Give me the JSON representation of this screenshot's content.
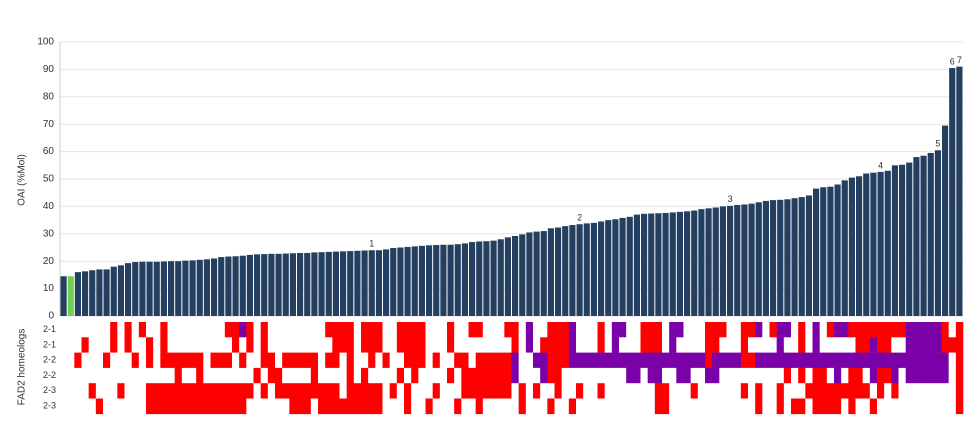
{
  "chart_data": {
    "type": "bar",
    "ylabel": "OAI (%Mol)",
    "ylim": [
      0,
      100
    ],
    "yticks": [
      0,
      10,
      20,
      30,
      40,
      50,
      60,
      70,
      80,
      90,
      100
    ],
    "grid": true,
    "color": "#243f60",
    "highlight": {
      "index": 1,
      "color": "#70d050"
    },
    "values": [
      14.5,
      14.5,
      16,
      16.3,
      16.7,
      17,
      17,
      18,
      18.5,
      19.3,
      19.7,
      19.8,
      19.8,
      19.8,
      19.9,
      20,
      20,
      20.2,
      20.3,
      20.5,
      20.7,
      21,
      21.5,
      21.7,
      21.8,
      22,
      22.3,
      22.5,
      22.6,
      22.7,
      22.7,
      22.8,
      22.9,
      23,
      23,
      23.2,
      23.3,
      23.4,
      23.5,
      23.6,
      23.7,
      23.8,
      23.9,
      24,
      24,
      24.3,
      24.8,
      25,
      25.2,
      25.4,
      25.6,
      25.8,
      25.9,
      26,
      26,
      26.2,
      26.5,
      27,
      27.2,
      27.3,
      27.5,
      28,
      28.7,
      29.2,
      29.8,
      30.5,
      30.8,
      31,
      32,
      32.3,
      32.8,
      33.2,
      33.5,
      33.8,
      34,
      34.5,
      35,
      35.3,
      35.8,
      36.2,
      37,
      37.3,
      37.4,
      37.5,
      37.6,
      37.8,
      38,
      38.2,
      38.5,
      39,
      39.3,
      39.6,
      40,
      40.2,
      40.5,
      40.7,
      41,
      41.5,
      42,
      42.3,
      42.4,
      42.6,
      43,
      43.4,
      44,
      46.5,
      47,
      47.2,
      48,
      49.5,
      50.5,
      51,
      52,
      52.3,
      52.6,
      53,
      55,
      55.2,
      56,
      58,
      58.5,
      59.5,
      60.5,
      69.5,
      90.5,
      91
    ],
    "annotations": [
      {
        "text": "1",
        "x": 43
      },
      {
        "text": "2",
        "x": 72
      },
      {
        "text": "3",
        "x": 93
      },
      {
        "text": "4",
        "x": 114
      },
      {
        "text": "5",
        "x": 122
      },
      {
        "text": "6",
        "x": 124
      },
      {
        "text": "7",
        "x": 125
      }
    ],
    "heatmap": {
      "label": "FAD2 homeologs",
      "colors": [
        "#ffffff",
        "#ff0000",
        "#7a00a8"
      ],
      "rows": [
        {
          "name": "2-1",
          "values": [
            0,
            0,
            0,
            0,
            0,
            0,
            0,
            1,
            0,
            1,
            0,
            1,
            0,
            0,
            1,
            0,
            0,
            0,
            0,
            0,
            0,
            0,
            0,
            1,
            1,
            2,
            1,
            0,
            1,
            0,
            0,
            0,
            0,
            0,
            0,
            0,
            0,
            1,
            1,
            1,
            1,
            0,
            1,
            1,
            1,
            0,
            0,
            1,
            1,
            1,
            1,
            0,
            0,
            0,
            1,
            0,
            0,
            1,
            1,
            0,
            0,
            0,
            1,
            1,
            0,
            2,
            0,
            0,
            1,
            1,
            1,
            2,
            0,
            0,
            0,
            1,
            0,
            2,
            2,
            0,
            0,
            1,
            1,
            1,
            0,
            2,
            2,
            0,
            0,
            0,
            1,
            1,
            1,
            0,
            0,
            1,
            1,
            2,
            0,
            1,
            2,
            2,
            0,
            1,
            0,
            2,
            0,
            1,
            2,
            2,
            1,
            1,
            1,
            1,
            1,
            1,
            1,
            1,
            2,
            2,
            2,
            2,
            2,
            1,
            0,
            1
          ]
        },
        {
          "name": "2-1",
          "values": [
            0,
            0,
            0,
            1,
            0,
            0,
            0,
            1,
            0,
            1,
            0,
            0,
            1,
            0,
            1,
            0,
            0,
            0,
            0,
            0,
            0,
            0,
            0,
            0,
            1,
            0,
            1,
            0,
            1,
            0,
            0,
            0,
            0,
            0,
            0,
            0,
            0,
            0,
            1,
            1,
            1,
            0,
            1,
            1,
            1,
            0,
            0,
            1,
            1,
            1,
            1,
            0,
            0,
            0,
            1,
            0,
            0,
            0,
            0,
            0,
            0,
            0,
            0,
            1,
            0,
            2,
            0,
            1,
            1,
            1,
            1,
            2,
            0,
            0,
            0,
            1,
            0,
            2,
            0,
            0,
            0,
            1,
            1,
            1,
            0,
            2,
            0,
            0,
            0,
            0,
            1,
            1,
            0,
            0,
            0,
            1,
            0,
            0,
            0,
            0,
            2,
            0,
            0,
            1,
            0,
            2,
            0,
            0,
            0,
            0,
            0,
            1,
            1,
            2,
            1,
            1,
            0,
            0,
            2,
            2,
            2,
            2,
            2,
            1,
            1,
            1
          ]
        },
        {
          "name": "2-2",
          "values": [
            0,
            0,
            1,
            0,
            0,
            0,
            1,
            0,
            0,
            0,
            1,
            0,
            1,
            0,
            1,
            1,
            1,
            1,
            1,
            1,
            0,
            1,
            1,
            1,
            0,
            1,
            0,
            0,
            1,
            1,
            0,
            1,
            1,
            1,
            1,
            1,
            0,
            1,
            1,
            0,
            1,
            0,
            0,
            1,
            0,
            1,
            0,
            0,
            1,
            1,
            1,
            0,
            1,
            0,
            0,
            1,
            1,
            0,
            1,
            1,
            1,
            1,
            1,
            2,
            0,
            0,
            2,
            2,
            1,
            1,
            1,
            2,
            2,
            2,
            2,
            2,
            2,
            2,
            2,
            2,
            2,
            2,
            2,
            2,
            2,
            2,
            2,
            2,
            2,
            2,
            1,
            2,
            2,
            2,
            2,
            1,
            1,
            2,
            2,
            2,
            2,
            2,
            2,
            2,
            2,
            2,
            2,
            2,
            2,
            2,
            2,
            2,
            2,
            2,
            2,
            2,
            2,
            2,
            2,
            2,
            2,
            2,
            2,
            2,
            0,
            1
          ]
        },
        {
          "name": "2-2",
          "values": [
            0,
            0,
            0,
            0,
            0,
            0,
            0,
            0,
            0,
            0,
            0,
            0,
            0,
            0,
            0,
            0,
            1,
            0,
            0,
            1,
            0,
            0,
            0,
            0,
            0,
            0,
            0,
            1,
            0,
            1,
            1,
            0,
            0,
            0,
            0,
            1,
            0,
            0,
            0,
            0,
            1,
            0,
            1,
            0,
            0,
            0,
            0,
            1,
            0,
            1,
            0,
            0,
            0,
            0,
            1,
            0,
            1,
            1,
            1,
            1,
            1,
            1,
            1,
            2,
            0,
            0,
            0,
            2,
            1,
            1,
            0,
            0,
            0,
            0,
            0,
            0,
            0,
            0,
            0,
            2,
            2,
            0,
            2,
            2,
            0,
            0,
            2,
            2,
            0,
            0,
            2,
            2,
            0,
            0,
            0,
            0,
            0,
            0,
            0,
            0,
            0,
            1,
            0,
            1,
            0,
            1,
            1,
            0,
            2,
            0,
            1,
            1,
            0,
            2,
            1,
            1,
            2,
            0,
            2,
            2,
            2,
            2,
            2,
            2,
            0,
            1
          ]
        },
        {
          "name": "2-3",
          "values": [
            0,
            0,
            0,
            0,
            1,
            0,
            0,
            0,
            1,
            0,
            0,
            0,
            1,
            1,
            1,
            1,
            1,
            1,
            1,
            1,
            1,
            1,
            1,
            1,
            1,
            1,
            1,
            0,
            1,
            0,
            1,
            1,
            1,
            1,
            1,
            1,
            1,
            1,
            1,
            0,
            1,
            1,
            1,
            1,
            1,
            0,
            1,
            0,
            1,
            0,
            0,
            0,
            1,
            0,
            0,
            0,
            1,
            1,
            1,
            1,
            1,
            1,
            1,
            0,
            1,
            0,
            1,
            0,
            0,
            1,
            0,
            0,
            1,
            0,
            0,
            1,
            0,
            0,
            0,
            0,
            0,
            0,
            0,
            1,
            1,
            0,
            0,
            0,
            1,
            0,
            0,
            0,
            0,
            0,
            0,
            1,
            0,
            1,
            0,
            0,
            1,
            0,
            0,
            0,
            1,
            1,
            1,
            1,
            1,
            1,
            1,
            1,
            1,
            0,
            1,
            0,
            1,
            0,
            0,
            0,
            0,
            0,
            0,
            0,
            0,
            1
          ]
        },
        {
          "name": "2-3",
          "values": [
            0,
            0,
            0,
            0,
            0,
            1,
            0,
            0,
            0,
            0,
            0,
            0,
            1,
            1,
            1,
            1,
            1,
            1,
            1,
            1,
            1,
            1,
            1,
            1,
            1,
            1,
            0,
            0,
            0,
            0,
            0,
            0,
            1,
            1,
            1,
            0,
            1,
            1,
            1,
            1,
            1,
            1,
            1,
            1,
            1,
            0,
            0,
            0,
            1,
            0,
            0,
            1,
            0,
            0,
            0,
            1,
            0,
            0,
            1,
            0,
            0,
            0,
            0,
            0,
            1,
            0,
            0,
            0,
            1,
            0,
            0,
            1,
            0,
            0,
            0,
            0,
            0,
            0,
            0,
            0,
            0,
            0,
            0,
            1,
            1,
            0,
            0,
            0,
            0,
            0,
            0,
            0,
            0,
            0,
            0,
            0,
            0,
            1,
            0,
            0,
            1,
            0,
            1,
            1,
            0,
            1,
            1,
            1,
            1,
            0,
            1,
            0,
            0,
            1,
            0,
            0,
            0,
            0,
            0,
            0,
            0,
            0,
            0,
            0,
            0,
            1
          ]
        }
      ]
    }
  }
}
